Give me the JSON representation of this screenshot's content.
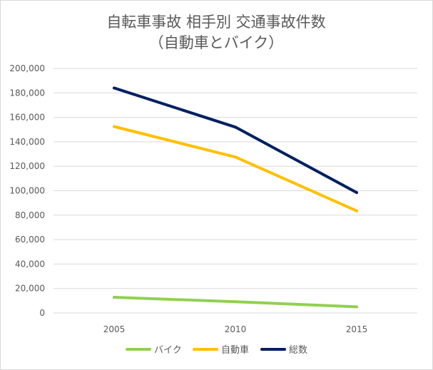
{
  "chart_data": {
    "type": "line",
    "title": "自転車事故 相手別 交通事故件数",
    "subtitle": "（自動車とバイク）",
    "x": [
      "2005",
      "2010",
      "2015"
    ],
    "ylim": [
      0,
      200000
    ],
    "yticks": [
      "0",
      "20,000",
      "40,000",
      "60,000",
      "80,000",
      "100,000",
      "120,000",
      "140,000",
      "160,000",
      "180,000",
      "200,000"
    ],
    "grid": true,
    "legend_position": "bottom",
    "series": [
      {
        "name": "バイク",
        "color": "#92d050",
        "values": [
          12800,
          9200,
          5000
        ]
      },
      {
        "name": "自動車",
        "color": "#ffc000",
        "values": [
          152500,
          127500,
          83500
        ]
      },
      {
        "name": "総数",
        "color": "#002060",
        "values": [
          184000,
          152000,
          98500
        ]
      }
    ]
  }
}
